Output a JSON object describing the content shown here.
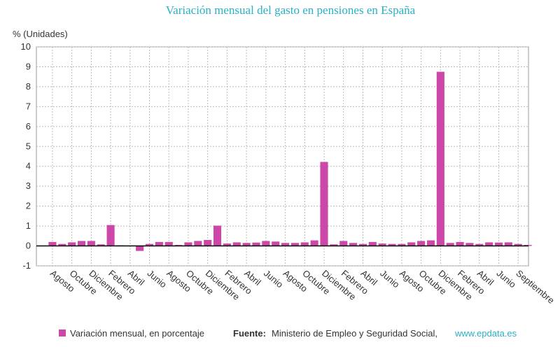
{
  "chart_data": {
    "type": "bar",
    "title": "Variación mensual del gasto en pensiones en España",
    "y_label": "% (Unidades)",
    "categories": [
      "Agosto",
      null,
      "Octubre",
      null,
      "Diciembre",
      null,
      "Febrero",
      null,
      "Abril",
      null,
      "Junio",
      null,
      "Agosto",
      null,
      "Octubre",
      null,
      "Diciembre",
      null,
      "Febrero",
      null,
      "Abril",
      null,
      "Junio",
      null,
      "Agosto",
      null,
      "Octubre",
      null,
      "Diciembre",
      null,
      "Febrero",
      null,
      "Abril",
      null,
      "Junio",
      null,
      "Agosto",
      null,
      "Octubre",
      null,
      "Diciembre",
      null,
      "Febrero",
      null,
      "Abril",
      null,
      "Junio",
      null,
      "Septiembre",
      null
    ],
    "series": [
      {
        "name": "Variación mensual, en porcentaje",
        "color": "#cc47a8",
        "values": [
          0.2,
          0.1,
          0.18,
          0.25,
          0.25,
          0.08,
          1.05,
          0.03,
          0.02,
          -0.25,
          0.1,
          0.2,
          0.2,
          0.05,
          0.18,
          0.25,
          0.3,
          1.02,
          0.12,
          0.18,
          0.15,
          0.17,
          0.25,
          0.22,
          0.15,
          0.15,
          0.18,
          0.28,
          4.22,
          0.08,
          0.25,
          0.15,
          0.1,
          0.2,
          0.12,
          0.1,
          0.1,
          0.18,
          0.25,
          0.28,
          8.75,
          0.15,
          0.2,
          0.15,
          0.1,
          0.18,
          0.17,
          0.18,
          0.1,
          0.05
        ]
      }
    ],
    "ylim": [
      -1,
      10
    ],
    "yticks": [
      -1,
      0,
      1,
      2,
      3,
      4,
      5,
      6,
      7,
      8,
      9,
      10
    ],
    "grid": true,
    "source_label": "Fuente:",
    "source": "Ministerio de Empleo y Seguridad Social,",
    "source_link": "www.epdata.es"
  }
}
